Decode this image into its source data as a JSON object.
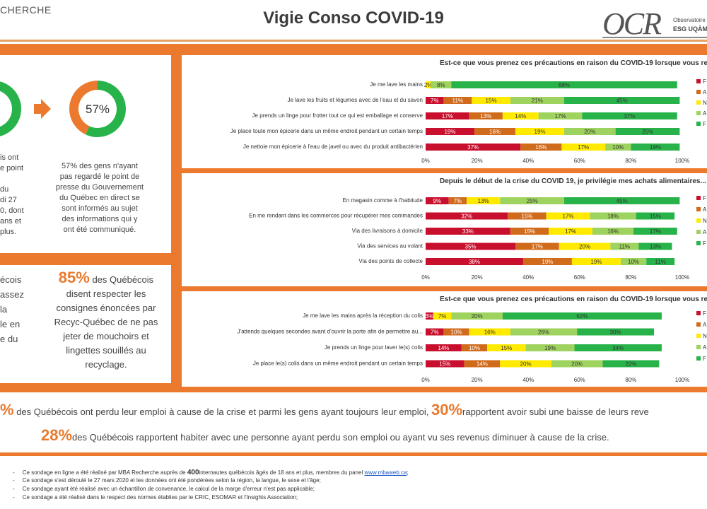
{
  "header": {
    "brand": "CHERCHE",
    "title": "Vigie Conso COVID-19",
    "logo_text": "OCR",
    "logo_sub1": "Observatoire d",
    "logo_sub2": "ESG UQÀM"
  },
  "colors": {
    "orange": "#ec7a2e",
    "green": "#28b34a",
    "red": "#c8102e",
    "darkorange": "#d16b1c",
    "yellow": "#ffea00",
    "lightgreen": "#9fd35f"
  },
  "donut_panel": {
    "left_text_lines": [
      "is ont",
      "e point",
      "",
      "du",
      "di 27",
      "0, dont",
      "ans et",
      "plus."
    ],
    "donut_value": 57,
    "donut_label": "57%",
    "right_text_lines": [
      "57% des gens n'ayant",
      "pas regardé  le point de",
      "presse  du Gouvernement",
      "du Québec en direct se",
      "sont informés au sujet",
      "des informations qui y",
      "ont été  communiqué."
    ]
  },
  "panel_85": {
    "left_text_lines": [
      "écois",
      "assez",
      "la",
      "le en",
      "e du"
    ],
    "pct": "85%",
    "text_first": " des Québécois",
    "text_lines": [
      "disent respecter les",
      "consignes énoncées par",
      "Recyc-Québec de ne pas",
      "jeter de mouchoirs et",
      "lingettes souillés au",
      "recyclage."
    ]
  },
  "stats": {
    "line1_pct1": "%",
    "line1_text1": "des Québécois ont perdu leur emploi à cause de la crise et parmi les gens ayant toujours leur emploi,",
    "line1_pct2": "30%",
    "line1_text2": "rapportent avoir subi une baisse de leurs reve",
    "line2_pct": "28%",
    "line2_text": "des Québécois rapportent habiter avec une personne ayant perdu son emploi ou ayant vu ses revenus diminuer à cause de la crise."
  },
  "footnotes": {
    "f1_before": "Ce sondage en ligne a été réalisé  par MBA Recherche auprès de ",
    "f1_bold": "400",
    "f1_after": "internautes québécois âgés de 18 ans et plus, membres du panel ",
    "f1_link": "www.mbaweb.ca",
    "f1_end": ";",
    "f2": "Ce sondage s'est déroulé le 27 mars 2020 et les données ont été pondérées selon la région, la langue, le sexe et l'âge;",
    "f3": "Ce sondage ayant été réalisé avec un échantillon de convenance, le calcul de la marge d'erreur n'est pas applicable;",
    "f4": "Ce sondage a été réalisé dans le respect des normes établies  par le CRIC, ESOMAR et l'Insights Association;"
  },
  "chart_data": [
    {
      "type": "bar",
      "orientation": "horizontal-stacked",
      "title": "Est-ce que vous prenez ces précautions en raison du COVID-19 lorsque vous rentrez chez vous après avoir fait votre épicer",
      "categories": [
        "Je me lave les mains",
        "Je lave les fruits et légumes avec de l'eau et du savon",
        "Je prends un linge pour frotter tout ce qui est emballage et conserve",
        "Je place toute mon épicerie dans un même endroit pendant un certain temps",
        "Je nettoie mon épicerie à l'eau de javel ou avec du produit antibactérien"
      ],
      "series": [
        {
          "name": "F",
          "values": [
            0,
            7,
            17,
            19,
            37
          ],
          "labels": [
            "",
            "7%",
            "17%",
            "19%",
            "37%"
          ]
        },
        {
          "name": "A",
          "values": [
            0,
            11,
            13,
            16,
            16
          ],
          "labels": [
            "",
            "11%",
            "13%",
            "16%",
            "16%"
          ]
        },
        {
          "name": "N",
          "values": [
            2,
            15,
            14,
            19,
            17
          ],
          "labels": [
            "2%",
            "15%",
            "14%",
            "19%",
            "17%"
          ]
        },
        {
          "name": "A",
          "values": [
            8,
            21,
            17,
            20,
            10
          ],
          "labels": [
            "8%",
            "21%",
            "17%",
            "20%",
            "10%"
          ]
        },
        {
          "name": "F",
          "values": [
            88,
            45,
            37,
            25,
            19
          ],
          "labels": [
            "88%",
            "45%",
            "37%",
            "25%",
            "19%"
          ]
        }
      ],
      "xlim": [
        0,
        100
      ],
      "xticks": [
        "0%",
        "20%",
        "40%",
        "60%",
        "80%",
        "100%"
      ]
    },
    {
      "type": "bar",
      "orientation": "horizontal-stacked",
      "title": "Depuis le début de la crise du COVID 19, je privilégie mes achats alimentaires...",
      "categories": [
        "En magasin comme à l'habitude",
        "En me rendant dans les commerces pour récupérer mes commandes",
        "Via des livraisons à domicile",
        "Via des services au volant",
        "Via des points de collecte"
      ],
      "series": [
        {
          "name": "F",
          "values": [
            9,
            32,
            33,
            35,
            38
          ],
          "labels": [
            "9%",
            "32%",
            "33%",
            "35%",
            "38%"
          ]
        },
        {
          "name": "A",
          "values": [
            7,
            15,
            15,
            17,
            19
          ],
          "labels": [
            "7%",
            "15%",
            "15%",
            "17%",
            "19%"
          ]
        },
        {
          "name": "N",
          "values": [
            13,
            17,
            17,
            20,
            19
          ],
          "labels": [
            "13%",
            "17%",
            "17%",
            "20%",
            "19%"
          ]
        },
        {
          "name": "A",
          "values": [
            25,
            18,
            16,
            11,
            10
          ],
          "labels": [
            "25%",
            "18%",
            "16%",
            "11%",
            "10%"
          ]
        },
        {
          "name": "F",
          "values": [
            45,
            15,
            17,
            13,
            11
          ],
          "labels": [
            "45%",
            "15%",
            "17%",
            "13%",
            "11%"
          ]
        }
      ],
      "xlim": [
        0,
        100
      ],
      "xticks": [
        "0%",
        "20%",
        "40%",
        "60%",
        "80%",
        "100%"
      ]
    },
    {
      "type": "bar",
      "orientation": "horizontal-stacked",
      "title": "Est-ce que vous prenez ces précautions en raison du COVID-19 lorsque vous recevez des colis à votre domicile ?",
      "categories": [
        "Je me lave les mains après la réception du colis",
        "J'attends quelques secondes avant d'ouvrir la porte afin de permettre au...",
        "Je prends un linge pour laver le(s) colis",
        "Je place le(s) colis dans un même endroit pendant un certain temps"
      ],
      "series": [
        {
          "name": "F",
          "values": [
            3,
            7,
            14,
            15
          ],
          "labels": [
            "3%",
            "7%",
            "14%",
            "15%"
          ]
        },
        {
          "name": "A",
          "values": [
            0,
            10,
            10,
            14
          ],
          "labels": [
            "",
            "10%",
            "10%",
            "14%"
          ]
        },
        {
          "name": "N",
          "values": [
            7,
            16,
            15,
            20
          ],
          "labels": [
            "7%",
            "16%",
            "15%",
            "20%"
          ]
        },
        {
          "name": "A",
          "values": [
            20,
            26,
            19,
            20
          ],
          "labels": [
            "20%",
            "26%",
            "19%",
            "20%"
          ]
        },
        {
          "name": "F",
          "values": [
            62,
            30,
            34,
            22
          ],
          "labels": [
            "62%",
            "30%",
            "34%",
            "22%"
          ]
        }
      ],
      "xlim": [
        0,
        100
      ],
      "xticks": [
        "0%",
        "20%",
        "40%",
        "60%",
        "80%",
        "100%"
      ]
    }
  ]
}
